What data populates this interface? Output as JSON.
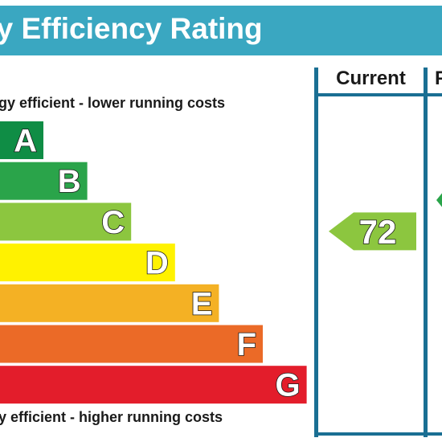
{
  "title": "gy Efficiency Rating",
  "columns": {
    "current": "Current",
    "potential": "P"
  },
  "top_note": "gy efficient - lower running costs",
  "bottom_note": "y efficient - higher running costs",
  "chart_data": {
    "type": "bar",
    "categories": [
      "A",
      "B",
      "C",
      "D",
      "E",
      "F",
      "G"
    ],
    "colors": [
      "#0f8d45",
      "#2aa44a",
      "#8cc63f",
      "#fff200",
      "#f4b124",
      "#eb6a27",
      "#e31d2b"
    ],
    "values": [
      1,
      2,
      3,
      4,
      5,
      6,
      7
    ],
    "current": {
      "value": 72,
      "band": "C",
      "color": "#8cc63f"
    },
    "potential": {
      "band": "B",
      "color": "#2aa44a"
    }
  }
}
